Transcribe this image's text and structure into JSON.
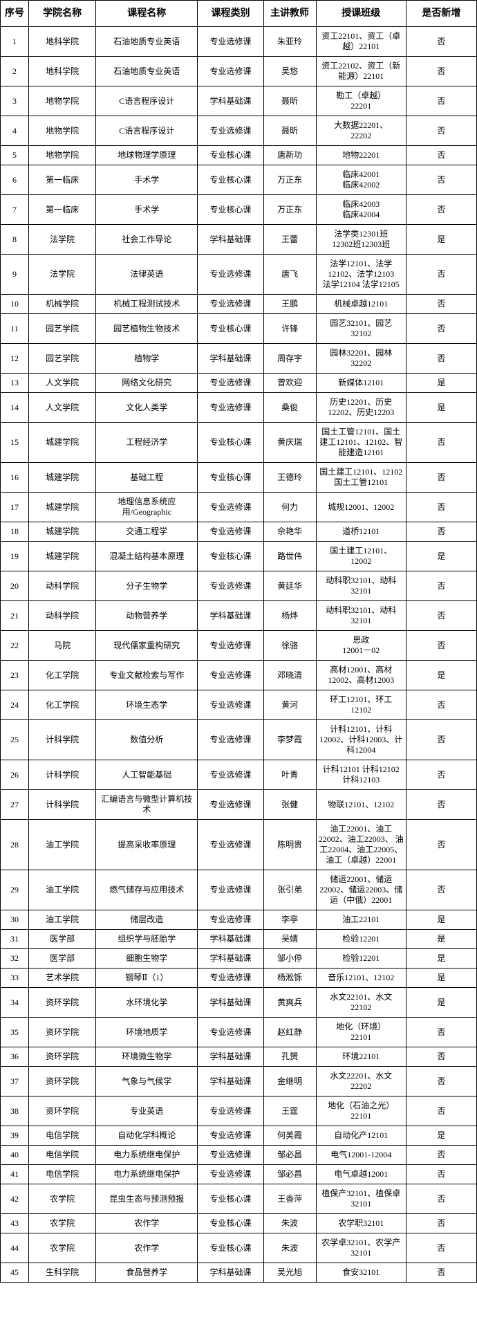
{
  "table": {
    "columns": [
      "序号",
      "学院名称",
      "课程名称",
      "课程类别",
      "主讲教师",
      "授课班级",
      "是否新增"
    ],
    "keys": [
      "no",
      "college",
      "course",
      "category",
      "teacher",
      "classes",
      "is_new"
    ],
    "rows": [
      {
        "no": "1",
        "college": "地科学院",
        "course": "石油地质专业英语",
        "category": "专业选修课",
        "teacher": "朱亚玲",
        "classes": "资工22101、资工（卓越）22101",
        "is_new": "否"
      },
      {
        "no": "2",
        "college": "地科学院",
        "course": "石油地质专业英语",
        "category": "专业选修课",
        "teacher": "吴悠",
        "classes": "资工22102、资工（新能源）22101",
        "is_new": "否"
      },
      {
        "no": "3",
        "college": "地物学院",
        "course": "C语言程序设计",
        "category": "学科基础课",
        "teacher": "聂昕",
        "classes": "勘工（卓越）\n22201",
        "is_new": "否"
      },
      {
        "no": "4",
        "college": "地物学院",
        "course": "C语言程序设计",
        "category": "专业选修课",
        "teacher": "聂昕",
        "classes": "大数据22201、\n22202",
        "is_new": "否"
      },
      {
        "no": "5",
        "college": "地物学院",
        "course": "地球物理学原理",
        "category": "专业核心课",
        "teacher": "唐新功",
        "classes": "地物22201",
        "is_new": "否"
      },
      {
        "no": "6",
        "college": "第一临床",
        "course": "手术学",
        "category": "专业核心课",
        "teacher": "万正东",
        "classes": "临床42001\n临床42002",
        "is_new": "否"
      },
      {
        "no": "7",
        "college": "第一临床",
        "course": "手术学",
        "category": "专业核心课",
        "teacher": "万正东",
        "classes": "临床42003\n临床42004",
        "is_new": "否"
      },
      {
        "no": "8",
        "college": "法学院",
        "course": "社会工作导论",
        "category": "学科基础课",
        "teacher": "王蕾",
        "classes": "法学类12301班\n12302班12303班",
        "is_new": "是"
      },
      {
        "no": "9",
        "college": "法学院",
        "course": "法律英语",
        "category": "专业选修课",
        "teacher": "唐飞",
        "classes": "法学12101、法学12102、法学12103\n法学12104 法学12105",
        "is_new": "否"
      },
      {
        "no": "10",
        "college": "机械学院",
        "course": "机械工程测试技术",
        "category": "专业选修课",
        "teacher": "王鹏",
        "classes": "机械卓越12101",
        "is_new": "否"
      },
      {
        "no": "11",
        "college": "园艺学院",
        "course": "园艺植物生物技术",
        "category": "专业核心课",
        "teacher": "许锋",
        "classes": "园艺32101、园艺\n32102",
        "is_new": "否"
      },
      {
        "no": "12",
        "college": "园艺学院",
        "course": "植物学",
        "category": "学科基础课",
        "teacher": "周存宇",
        "classes": "园林32201、园林\n32202",
        "is_new": "否"
      },
      {
        "no": "13",
        "college": "人文学院",
        "course": "网络文化研究",
        "category": "专业选修课",
        "teacher": "曾欢迎",
        "classes": "新媒体12101",
        "is_new": "是"
      },
      {
        "no": "14",
        "college": "人文学院",
        "course": "文化人类学",
        "category": "专业选修课",
        "teacher": "桑俊",
        "classes": "历史12201、历史12202、历史12203",
        "is_new": "是"
      },
      {
        "no": "15",
        "college": "城建学院",
        "course": "工程经济学",
        "category": "专业核心课",
        "teacher": "黄庆瑞",
        "classes": "国土工管12101、国土建工12101、12102、智能建造12101",
        "is_new": "否"
      },
      {
        "no": "16",
        "college": "城建学院",
        "course": "基础工程",
        "category": "专业核心课",
        "teacher": "王德玲",
        "classes": "国土建工12101、12102\n国土工管12101",
        "is_new": "否"
      },
      {
        "no": "17",
        "college": "城建学院",
        "course": "地理信息系统应用/Geographic",
        "category": "专业选修课",
        "teacher": "何力",
        "classes": "城规12001、12002",
        "is_new": "否"
      },
      {
        "no": "18",
        "college": "城建学院",
        "course": "交通工程学",
        "category": "专业选修课",
        "teacher": "佘艳华",
        "classes": "道桥12101",
        "is_new": "否"
      },
      {
        "no": "19",
        "college": "城建学院",
        "course": "混凝土结构基本原理",
        "category": "专业核心课",
        "teacher": "路世伟",
        "classes": "国土建工12101、\n12002",
        "is_new": "是"
      },
      {
        "no": "20",
        "college": "动科学院",
        "course": "分子生物学",
        "category": "专业选修课",
        "teacher": "黄廷华",
        "classes": "动科职32101、动科32101",
        "is_new": "否"
      },
      {
        "no": "21",
        "college": "动科学院",
        "course": "动物营养学",
        "category": "学科基础课",
        "teacher": "杨烨",
        "classes": "动科职32101、动科32101",
        "is_new": "否"
      },
      {
        "no": "22",
        "college": "马院",
        "course": "现代儒家重构研究",
        "category": "专业选修课",
        "teacher": "徐骆",
        "classes": "思政\n12001－02",
        "is_new": "否"
      },
      {
        "no": "23",
        "college": "化工学院",
        "course": "专业文献检索与写作",
        "category": "专业选修课",
        "teacher": "邓晓清",
        "classes": "高材12001、高材12002、高材12003",
        "is_new": "是"
      },
      {
        "no": "24",
        "college": "化工学院",
        "course": "环境生态学",
        "category": "专业选修课",
        "teacher": "黄河",
        "classes": "环工12101、环工\n12102",
        "is_new": "否"
      },
      {
        "no": "25",
        "college": "计科学院",
        "course": "数值分析",
        "category": "专业选修课",
        "teacher": "李梦霞",
        "classes": "计科12101、计科12002、计科12003、计科12004",
        "is_new": "否"
      },
      {
        "no": "26",
        "college": "计科学院",
        "course": "人工智能基础",
        "category": "专业选修课",
        "teacher": "叶青",
        "classes": "计科12101 计科12102 计科12103",
        "is_new": "否"
      },
      {
        "no": "27",
        "college": "计科学院",
        "course": "汇编语言与微型计算机技术",
        "category": "专业选修课",
        "teacher": "张健",
        "classes": "物联12101、12102",
        "is_new": "否"
      },
      {
        "no": "28",
        "college": "油工学院",
        "course": "提高采收率原理",
        "category": "专业选修课",
        "teacher": "陈明贵",
        "classes": "油工22001、油工22002、油工22003、 油工22004、油工22005、油工（卓越）22001",
        "is_new": "否"
      },
      {
        "no": "29",
        "college": "油工学院",
        "course": "燃气储存与应用技术",
        "category": "专业选修课",
        "teacher": "张引弟",
        "classes": "储运22001、储运22002、储运22003、储运（中俄）22001",
        "is_new": "否"
      },
      {
        "no": "30",
        "college": "油工学院",
        "course": "储层改造",
        "category": "专业选修课",
        "teacher": "李亭",
        "classes": "油工22101",
        "is_new": "是"
      },
      {
        "no": "31",
        "college": "医学部",
        "course": "组织学与胚胎学",
        "category": "学科基础课",
        "teacher": "吴婧",
        "classes": "检验12201",
        "is_new": "是"
      },
      {
        "no": "32",
        "college": "医学部",
        "course": "细胞生物学",
        "category": "学科基础课",
        "teacher": "邹小停",
        "classes": "检验12201",
        "is_new": "是"
      },
      {
        "no": "33",
        "college": "艺术学院",
        "course": "钢琴Ⅱ（1）",
        "category": "专业选修课",
        "teacher": "杨淞铄",
        "classes": "音乐12101、12102",
        "is_new": "是"
      },
      {
        "no": "34",
        "college": "资环学院",
        "course": "水环境化学",
        "category": "学科基础课",
        "teacher": "黄爽兵",
        "classes": "水文22101、水文\n22102",
        "is_new": "是"
      },
      {
        "no": "35",
        "college": "资环学院",
        "course": "环境地质学",
        "category": "专业选修课",
        "teacher": "赵红静",
        "classes": "地化（环境）\n22101",
        "is_new": "否"
      },
      {
        "no": "36",
        "college": "资环学院",
        "course": "环境微生物学",
        "category": "学科基础课",
        "teacher": "孔赟",
        "classes": "环境22101",
        "is_new": "否"
      },
      {
        "no": "37",
        "college": "资环学院",
        "course": "气象与气候学",
        "category": "学科基础课",
        "teacher": "金继明",
        "classes": "水文22201、水文\n22202",
        "is_new": "否"
      },
      {
        "no": "38",
        "college": "资环学院",
        "course": "专业英语",
        "category": "专业选修课",
        "teacher": "王霆",
        "classes": "地化（石油之光）\n22101",
        "is_new": "否"
      },
      {
        "no": "39",
        "college": "电信学院",
        "course": "自动化学科概论",
        "category": "专业选修课",
        "teacher": "何美霞",
        "classes": "自动化产12101",
        "is_new": "是"
      },
      {
        "no": "40",
        "college": "电信学院",
        "course": "电力系统继电保护",
        "category": "专业选修课",
        "teacher": "邹必昌",
        "classes": "电气12001-12004",
        "is_new": "否"
      },
      {
        "no": "41",
        "college": "电信学院",
        "course": "电力系统继电保护",
        "category": "专业选修课",
        "teacher": "邹必昌",
        "classes": "电气卓越12001",
        "is_new": "否"
      },
      {
        "no": "42",
        "college": "农学院",
        "course": "昆虫生态与预测预报",
        "category": "专业核心课",
        "teacher": "王香萍",
        "classes": "植保产32101、植保卓32101",
        "is_new": "否"
      },
      {
        "no": "43",
        "college": "农学院",
        "course": "农作学",
        "category": "专业核心课",
        "teacher": "朱波",
        "classes": "农学职32101",
        "is_new": "否"
      },
      {
        "no": "44",
        "college": "农学院",
        "course": "农作学",
        "category": "专业核心课",
        "teacher": "朱波",
        "classes": "农学卓32101、农学产32101",
        "is_new": "否"
      },
      {
        "no": "45",
        "college": "生科学院",
        "course": "食品营养学",
        "category": "学科基础课",
        "teacher": "吴光旭",
        "classes": "食安32101",
        "is_new": "否"
      }
    ]
  }
}
